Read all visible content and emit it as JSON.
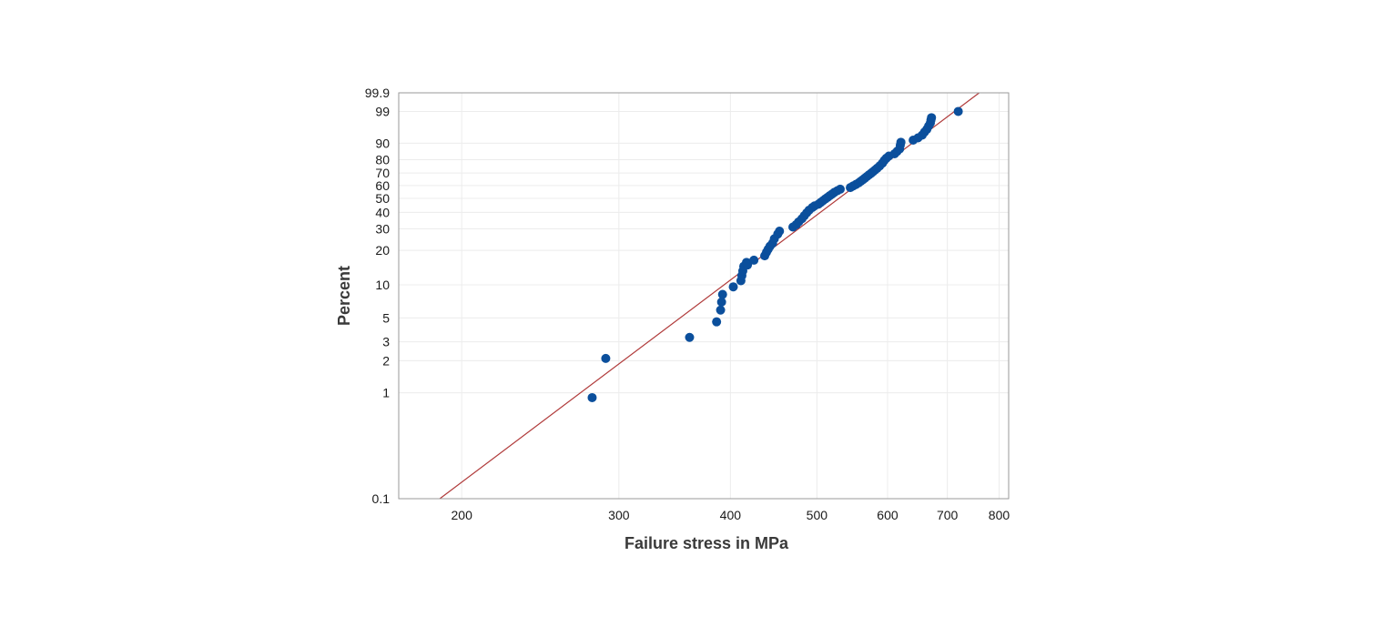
{
  "chart_data": {
    "type": "scatter",
    "title": "",
    "xlabel": "Failure stress in MPa",
    "ylabel": "Percent",
    "x_scale": "log",
    "y_scale": "weibull-probability",
    "xlim": [
      170,
      820
    ],
    "ylim": [
      0.1,
      99.9
    ],
    "grid": true,
    "x_ticks": [
      200,
      300,
      400,
      500,
      600,
      700,
      800
    ],
    "y_ticks": [
      0.1,
      1,
      2,
      3,
      5,
      10,
      20,
      30,
      40,
      50,
      60,
      70,
      80,
      90,
      99,
      99.9
    ],
    "colors": {
      "points": "#0b4f9c",
      "fit_line": "#b03a3a",
      "grid": "#ececec",
      "frame": "#9a9a9a"
    },
    "fit_line": {
      "x": [
        189,
        760
      ],
      "y": [
        0.1,
        99.9
      ]
    },
    "series": [
      {
        "x": [
          280,
          290,
          360,
          386,
          390,
          391,
          392,
          403,
          411,
          412,
          413,
          414,
          417,
          418,
          425,
          437,
          439,
          441,
          443,
          446,
          448,
          452,
          454,
          470,
          474,
          477,
          481,
          484,
          487,
          490,
          494,
          497,
          502,
          505,
          508,
          511,
          514,
          517,
          520,
          523,
          527,
          531,
          545,
          549,
          553,
          557,
          560,
          563,
          566,
          569,
          572,
          575,
          578,
          581,
          584,
          588,
          592,
          595,
          598,
          602,
          611,
          615,
          619,
          620,
          621,
          641,
          649,
          656,
          660,
          664,
          667,
          670,
          671,
          672,
          720
        ],
        "y": [
          0.9,
          2.1,
          3.3,
          4.6,
          5.9,
          7.0,
          8.2,
          9.6,
          10.9,
          12.1,
          13.3,
          14.6,
          15.8,
          15.0,
          16.5,
          18.0,
          19.3,
          20.5,
          21.7,
          23.0,
          25.0,
          27.3,
          28.8,
          31.0,
          32.4,
          34.0,
          35.9,
          37.8,
          39.7,
          41.5,
          43.3,
          44.5,
          45.7,
          47.0,
          48.3,
          49.6,
          50.8,
          52.1,
          53.3,
          54.6,
          55.9,
          57.1,
          58.4,
          59.7,
          60.9,
          62.2,
          63.5,
          64.7,
          66.0,
          67.3,
          68.6,
          69.8,
          71.1,
          72.4,
          73.7,
          75.5,
          77.5,
          79.5,
          81.0,
          82.5,
          84.0,
          85.5,
          87.0,
          89.0,
          90.5,
          91.5,
          92.5,
          93.6,
          94.7,
          95.6,
          96.5,
          97.2,
          97.8,
          98.2,
          99.0
        ]
      }
    ]
  }
}
